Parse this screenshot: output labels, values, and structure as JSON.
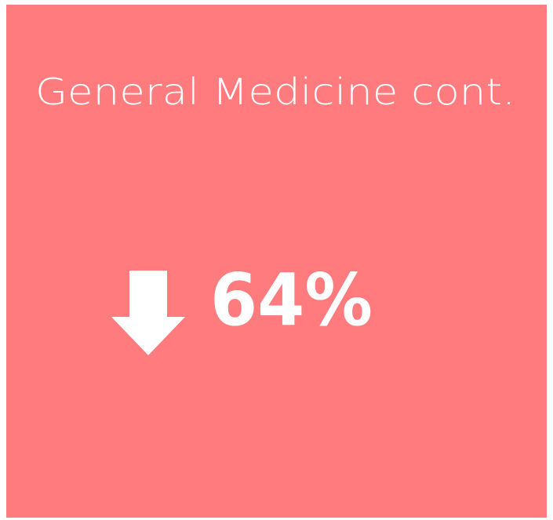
{
  "card": {
    "title": "General Medicine cont.",
    "value": "64%"
  }
}
